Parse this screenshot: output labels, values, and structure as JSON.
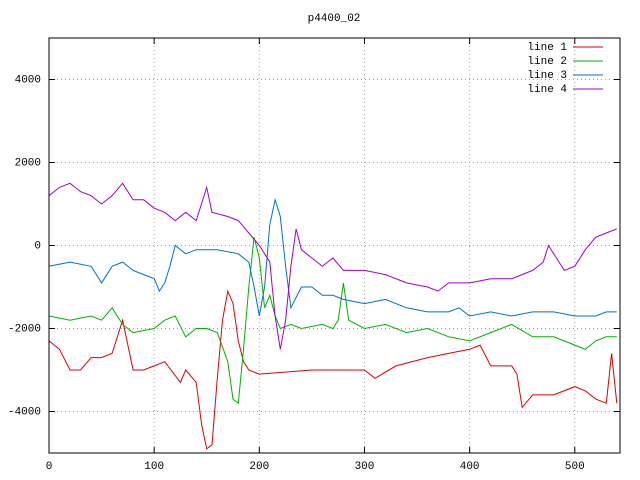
{
  "chart_data": {
    "type": "line",
    "title": "p4400_02",
    "xlim": [
      0,
      543
    ],
    "ylim": [
      -5000,
      5000
    ],
    "xticks": [
      0,
      100,
      200,
      300,
      400,
      500
    ],
    "yticks": [
      -4000,
      -2000,
      0,
      2000,
      4000
    ],
    "grid": true,
    "legend": "top-right",
    "series": [
      {
        "name": "line 1",
        "color": "#e00000",
        "x": [
          0,
          10,
          20,
          30,
          40,
          50,
          60,
          70,
          80,
          90,
          100,
          110,
          125,
          130,
          140,
          145,
          150,
          155,
          160,
          165,
          170,
          175,
          180,
          185,
          190,
          200,
          250,
          300,
          310,
          330,
          360,
          380,
          400,
          410,
          420,
          440,
          445,
          450,
          460,
          480,
          500,
          510,
          520,
          530,
          535,
          540
        ],
        "values": [
          -2300,
          -2500,
          -3000,
          -3000,
          -2700,
          -2700,
          -2600,
          -1800,
          -3000,
          -3000,
          -2900,
          -2800,
          -3300,
          -3000,
          -3300,
          -4300,
          -4900,
          -4800,
          -3200,
          -1800,
          -1100,
          -1400,
          -2300,
          -2800,
          -3000,
          -3100,
          -3000,
          -3000,
          -3200,
          -2900,
          -2700,
          -2600,
          -2500,
          -2400,
          -2900,
          -2900,
          -3100,
          -3900,
          -3600,
          -3600,
          -3400,
          -3500,
          -3700,
          -3800,
          -2600,
          -3800
        ]
      },
      {
        "name": "line 2",
        "color": "#00b000",
        "x": [
          0,
          20,
          40,
          50,
          60,
          70,
          80,
          100,
          110,
          120,
          130,
          140,
          150,
          160,
          170,
          175,
          180,
          185,
          190,
          195,
          200,
          205,
          210,
          215,
          220,
          230,
          240,
          260,
          270,
          275,
          280,
          285,
          300,
          320,
          340,
          360,
          380,
          400,
          420,
          440,
          460,
          480,
          500,
          510,
          520,
          530,
          540
        ],
        "values": [
          -1700,
          -1800,
          -1700,
          -1800,
          -1500,
          -1900,
          -2100,
          -2000,
          -1800,
          -1700,
          -2200,
          -2000,
          -2000,
          -2100,
          -2800,
          -3700,
          -3800,
          -2500,
          -1000,
          200,
          -300,
          -1500,
          -1200,
          -1700,
          -2000,
          -1900,
          -2000,
          -1900,
          -2000,
          -1800,
          -900,
          -1800,
          -2000,
          -1900,
          -2100,
          -2000,
          -2200,
          -2300,
          -2100,
          -1900,
          -2200,
          -2200,
          -2400,
          -2500,
          -2300,
          -2200,
          -2200
        ]
      },
      {
        "name": "line 3",
        "color": "#0070d0",
        "x": [
          0,
          20,
          40,
          50,
          60,
          70,
          80,
          90,
          100,
          105,
          110,
          115,
          120,
          130,
          140,
          160,
          180,
          190,
          195,
          200,
          205,
          210,
          215,
          220,
          225,
          230,
          240,
          250,
          260,
          270,
          280,
          300,
          320,
          340,
          360,
          380,
          390,
          400,
          420,
          440,
          460,
          480,
          500,
          520,
          530,
          540
        ],
        "values": [
          -500,
          -400,
          -500,
          -900,
          -500,
          -400,
          -600,
          -700,
          -800,
          -1100,
          -900,
          -500,
          0,
          -200,
          -100,
          -100,
          -200,
          -400,
          -1000,
          -1700,
          -1000,
          500,
          1100,
          700,
          -500,
          -1500,
          -1000,
          -1000,
          -1200,
          -1200,
          -1300,
          -1400,
          -1300,
          -1500,
          -1600,
          -1600,
          -1500,
          -1700,
          -1600,
          -1700,
          -1600,
          -1600,
          -1700,
          -1700,
          -1600,
          -1600
        ]
      },
      {
        "name": "line 4",
        "color": "#a000d0",
        "x": [
          0,
          10,
          20,
          30,
          40,
          50,
          60,
          70,
          80,
          90,
          100,
          110,
          120,
          130,
          140,
          150,
          155,
          170,
          180,
          190,
          200,
          205,
          210,
          215,
          220,
          225,
          230,
          235,
          240,
          250,
          260,
          270,
          280,
          300,
          320,
          340,
          360,
          370,
          380,
          400,
          420,
          440,
          460,
          470,
          475,
          490,
          500,
          510,
          520,
          530,
          540
        ],
        "values": [
          1200,
          1400,
          1500,
          1300,
          1200,
          1000,
          1200,
          1500,
          1100,
          1100,
          900,
          800,
          600,
          800,
          600,
          1400,
          800,
          700,
          600,
          300,
          0,
          -200,
          -400,
          -1700,
          -2500,
          -1800,
          -500,
          400,
          -100,
          -300,
          -500,
          -300,
          -600,
          -600,
          -700,
          -900,
          -1000,
          -1100,
          -900,
          -900,
          -800,
          -800,
          -600,
          -400,
          0,
          -600,
          -500,
          -100,
          200,
          300,
          400
        ]
      }
    ]
  }
}
